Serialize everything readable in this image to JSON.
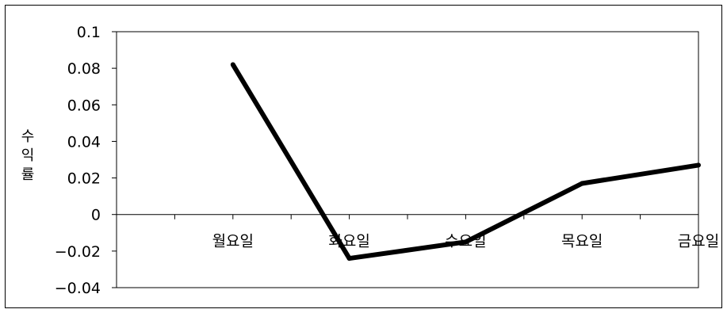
{
  "chart_data": {
    "type": "line",
    "ylabel": "수익률",
    "categories": [
      "월요일",
      "화요일",
      "수요일",
      "목요일",
      "금요일"
    ],
    "series": [
      {
        "values": [
          0.082,
          -0.024,
          -0.015,
          0.017,
          0.027
        ]
      }
    ],
    "ylim": [
      -0.04,
      0.1
    ],
    "yticks": [
      0.1,
      0.08,
      0.06,
      0.04,
      0.02,
      0,
      -0.02,
      -0.04
    ],
    "ytick_labels": [
      "0.1",
      "0.08",
      "0.06",
      "0.04",
      "0.02",
      "0",
      "−0.02",
      "−0.04"
    ],
    "grid": false,
    "legend": "none",
    "line_color": "#000000"
  }
}
